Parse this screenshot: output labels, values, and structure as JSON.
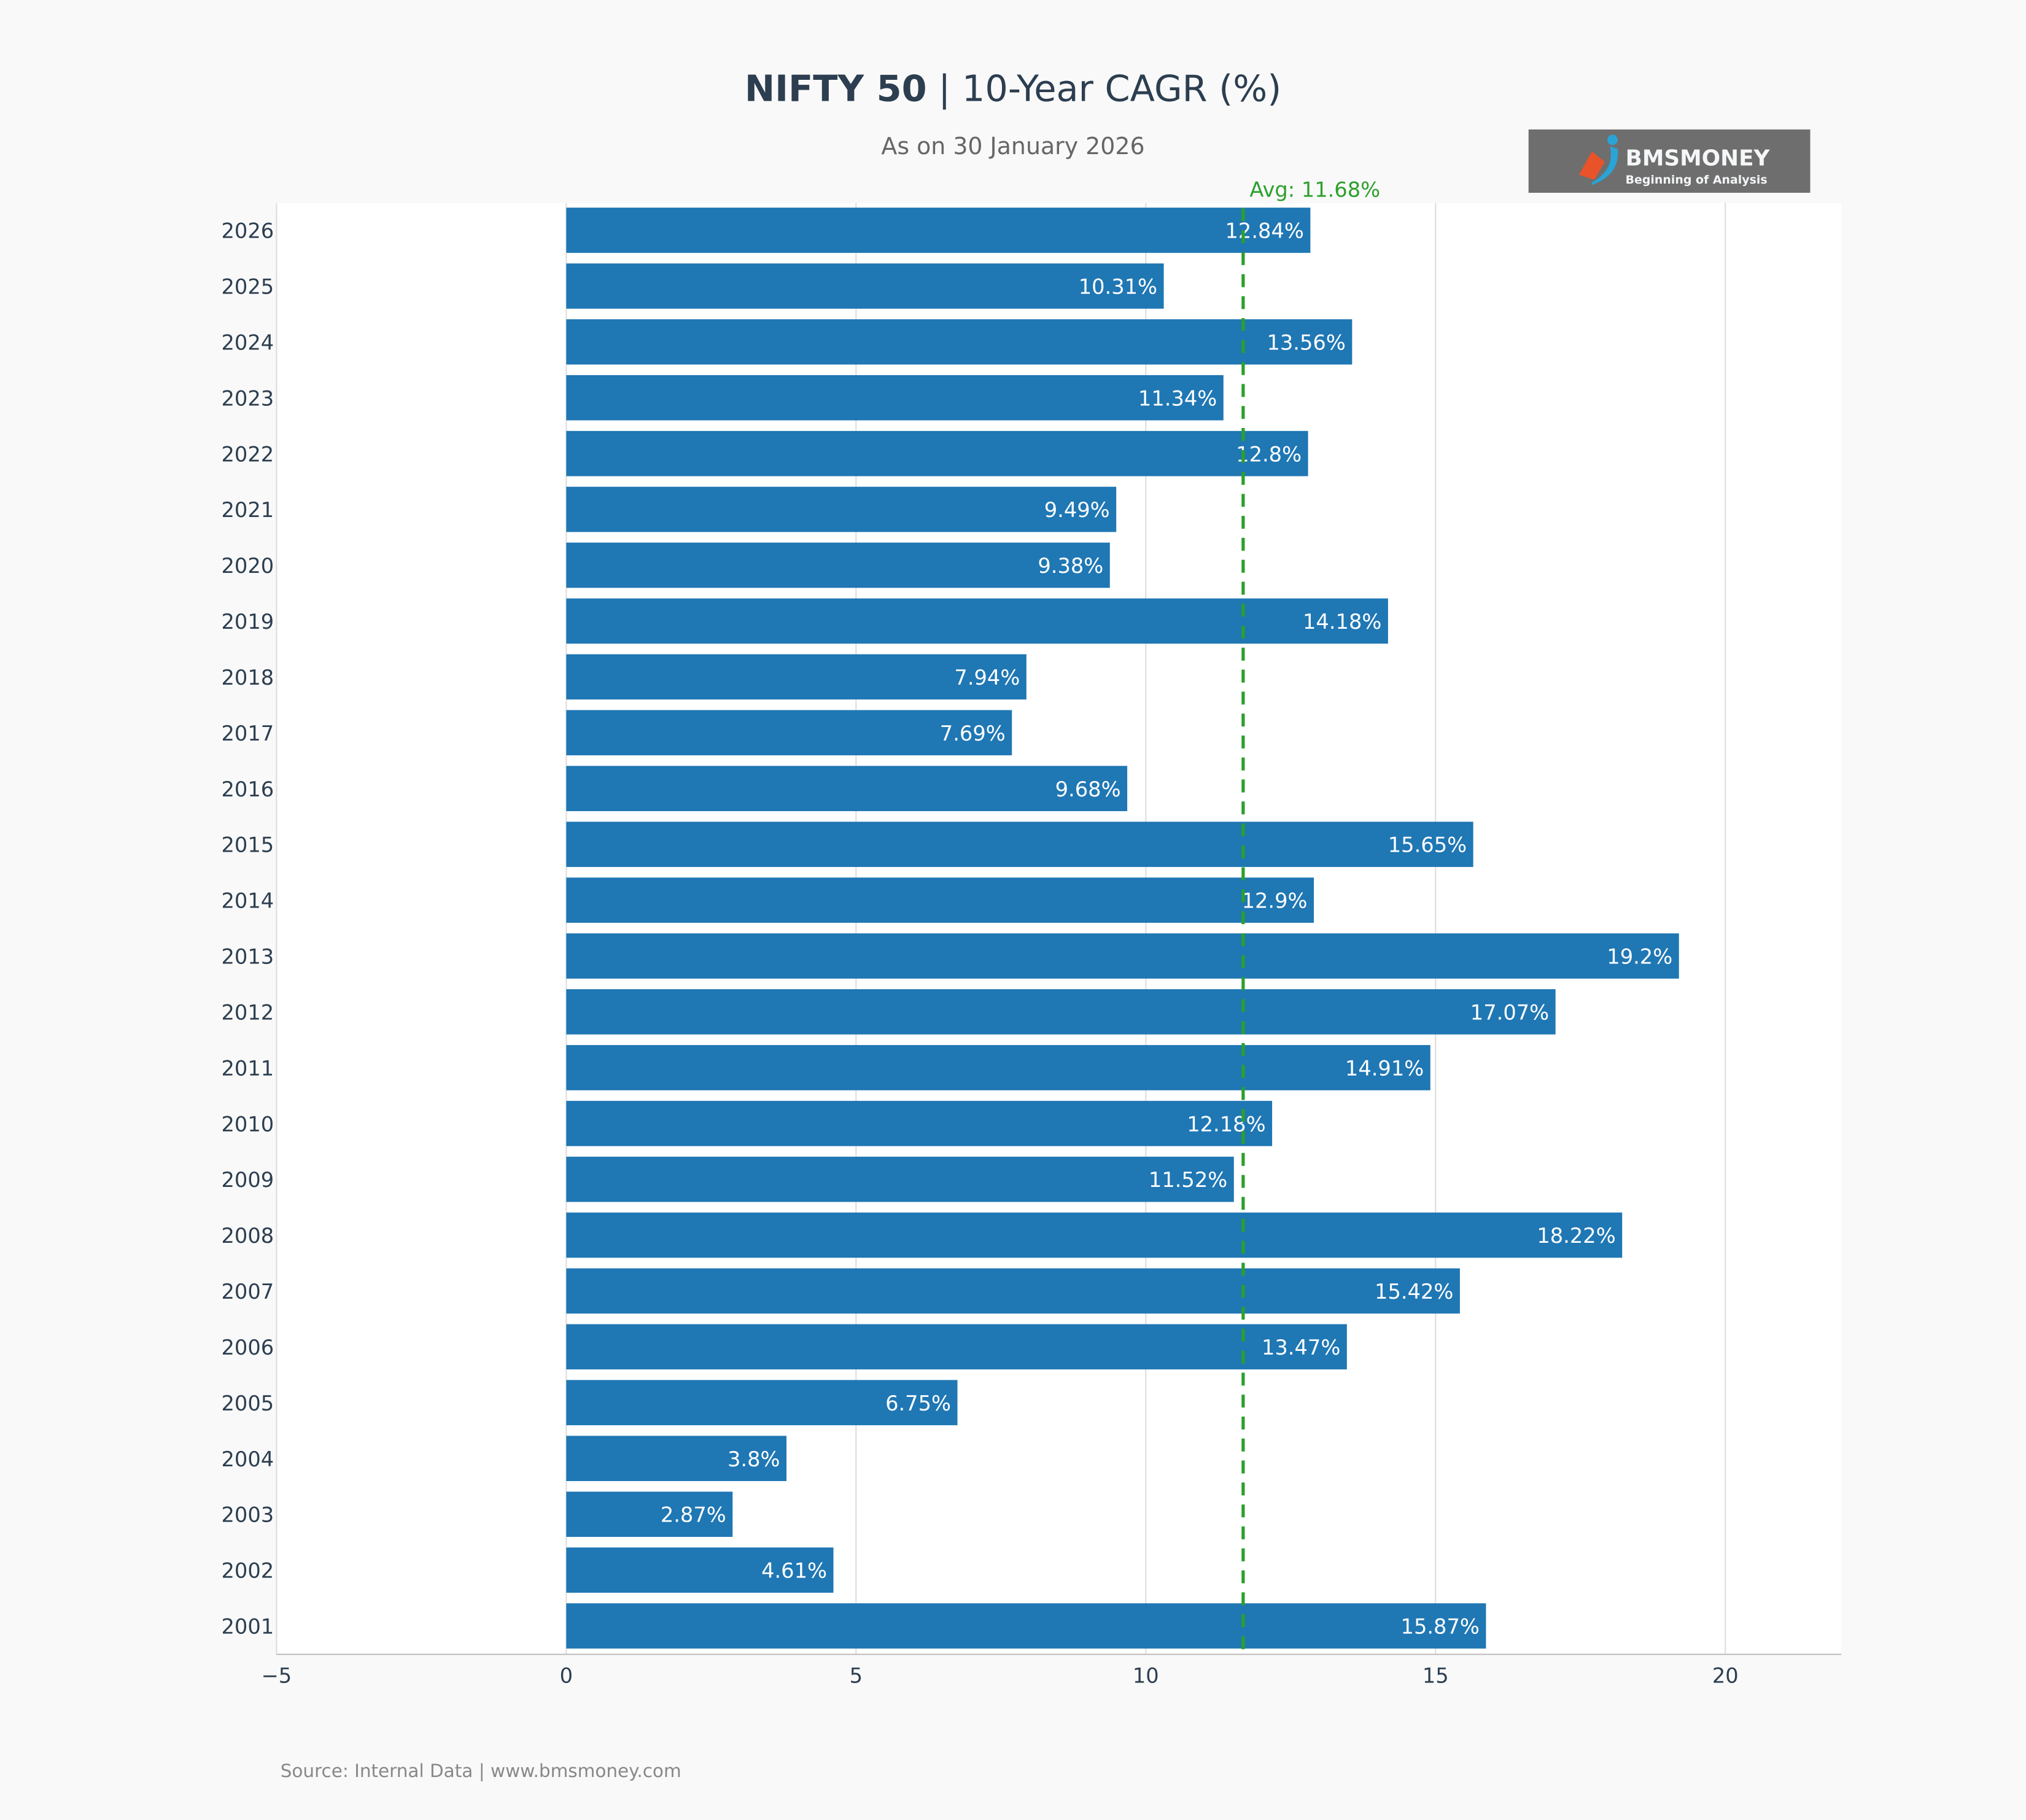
{
  "title_bold": "NIFTY 50",
  "title_rest": " | 10-Year CAGR (%)",
  "subtitle": "As on 30 January 2026",
  "logo": {
    "name": "BMSMONEY",
    "tagline": "Beginning of Analysis",
    "bg": "#6e6e6e"
  },
  "source": "Source: Internal Data | www.bmsmoney.com",
  "chart_data": {
    "type": "bar",
    "orientation": "horizontal",
    "categories": [
      "2026",
      "2025",
      "2024",
      "2023",
      "2022",
      "2021",
      "2020",
      "2019",
      "2018",
      "2017",
      "2016",
      "2015",
      "2014",
      "2013",
      "2012",
      "2011",
      "2010",
      "2009",
      "2008",
      "2007",
      "2006",
      "2005",
      "2004",
      "2003",
      "2002",
      "2001"
    ],
    "values": [
      12.84,
      10.31,
      13.56,
      11.34,
      12.8,
      9.49,
      9.38,
      14.18,
      7.94,
      7.69,
      9.68,
      15.65,
      12.9,
      19.2,
      17.07,
      14.91,
      12.18,
      11.52,
      18.22,
      15.42,
      13.47,
      6.75,
      3.8,
      2.87,
      4.61,
      15.87
    ],
    "labels": [
      "12.84%",
      "10.31%",
      "13.56%",
      "11.34%",
      "12.8%",
      "9.49%",
      "9.38%",
      "14.18%",
      "7.94%",
      "7.69%",
      "9.68%",
      "15.65%",
      "12.9%",
      "19.2%",
      "17.07%",
      "14.91%",
      "12.18%",
      "11.52%",
      "18.22%",
      "15.42%",
      "13.47%",
      "6.75%",
      "3.8%",
      "2.87%",
      "4.61%",
      "15.87%"
    ],
    "xlim": [
      -5,
      22
    ],
    "xticks": [
      -5,
      0,
      5,
      10,
      15,
      20
    ],
    "xtick_labels": [
      "−5",
      "0",
      "5",
      "10",
      "15",
      "20"
    ],
    "grid": "vertical",
    "bar_color": "#1f77b4",
    "average": {
      "value": 11.68,
      "label": "Avg: 11.68%",
      "color": "#2ca02c"
    }
  }
}
